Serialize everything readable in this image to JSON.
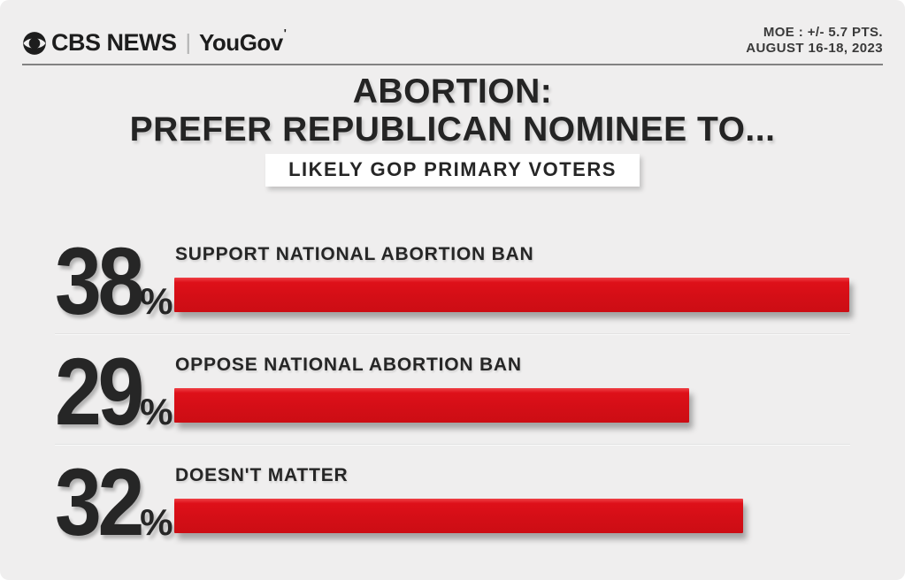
{
  "header": {
    "brand": {
      "cbs": "CBS NEWS",
      "separator": "|",
      "partner": "YouGov",
      "partner_mark": "'"
    },
    "moe_line1": "MOE : +/- 5.7 PTS.",
    "moe_line2": "AUGUST 16-18, 2023"
  },
  "title": {
    "line1": "ABORTION:",
    "line2": "PREFER REPUBLICAN NOMINEE TO..."
  },
  "badge": "LIKELY GOP PRIMARY VOTERS",
  "chart_data": {
    "type": "bar",
    "orientation": "horizontal",
    "title": "ABORTION: PREFER REPUBLICAN NOMINEE TO...",
    "subtitle": "LIKELY GOP PRIMARY VOTERS",
    "unit": "%",
    "categories": [
      "SUPPORT NATIONAL ABORTION BAN",
      "OPPOSE NATIONAL ABORTION BAN",
      "DOESN'T MATTER"
    ],
    "values": [
      38,
      29,
      32
    ],
    "xlim": [
      0,
      39.3
    ],
    "bar_color": "#d8111b",
    "legend": "none",
    "grid": "off"
  },
  "colors": {
    "background": "#efeeee",
    "bar_red": "#d8111b",
    "text_dark": "#262626",
    "header_rule": "#828282",
    "badge_background": "#ffffff"
  }
}
